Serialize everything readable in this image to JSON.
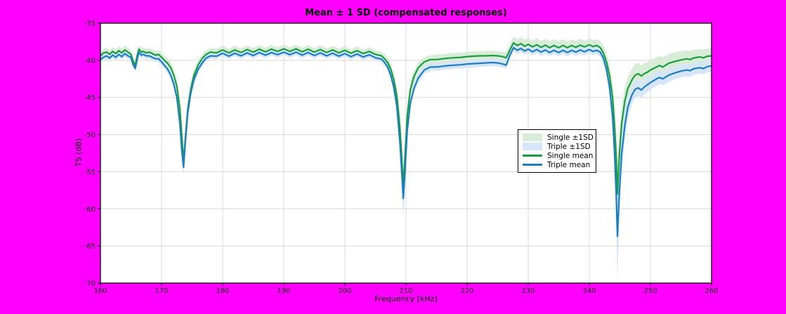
{
  "figure": {
    "background_color": "#ff00ff",
    "plot_background_color": "#ffffff",
    "grid_color": "#d8d8d8",
    "axis_color": "#1a1a1a"
  },
  "legend": {
    "items": [
      {
        "label": "Single ±1SD",
        "color": "#d8ecd8",
        "type": "patch"
      },
      {
        "label": "Triple ±1SD",
        "color": "#d6e6f8",
        "type": "patch"
      },
      {
        "label": "Single mean",
        "color": "#189e3e",
        "type": "line"
      },
      {
        "label": "Triple mean",
        "color": "#1b7ec2",
        "type": "line"
      }
    ]
  },
  "chart_data": {
    "type": "line",
    "title": "Mean ± 1 SD (compensated responses)",
    "xlabel": "Frequency [kHz]",
    "ylabel": "TS (dB)",
    "xlim": [
      160,
      260
    ],
    "ylim": [
      -70,
      -35
    ],
    "xticks": [
      160,
      170,
      180,
      190,
      200,
      210,
      220,
      230,
      240,
      250,
      260
    ],
    "yticks": [
      -35,
      -40,
      -45,
      -50,
      -55,
      -60,
      -65,
      -70
    ],
    "grid": true,
    "legend_position": "center-right",
    "x": [
      160,
      160.5,
      161,
      161.5,
      162,
      162.5,
      163,
      163.5,
      164,
      164.5,
      165,
      165.3,
      165.7,
      166,
      166.3,
      166.7,
      167,
      167.5,
      168,
      168.5,
      169,
      169.5,
      170,
      170.5,
      171,
      171.5,
      172,
      172.5,
      173,
      173.3,
      173.6,
      173.9,
      174.3,
      174.8,
      175.3,
      176,
      176.7,
      177.3,
      178,
      179,
      180,
      181,
      182,
      183,
      184,
      185,
      186,
      187,
      188,
      189,
      190,
      191,
      192,
      193,
      194,
      195,
      196,
      197,
      198,
      199,
      200,
      201,
      202,
      203,
      204,
      205,
      206,
      206.5,
      207,
      207.5,
      208,
      208.5,
      209,
      209.3,
      209.55,
      209.8,
      210.2,
      210.7,
      211.3,
      212,
      213,
      214,
      215,
      216,
      217,
      218,
      219,
      220,
      221,
      222,
      223,
      224,
      225,
      225.8,
      226.4,
      227,
      227.6,
      228.2,
      228.8,
      229.4,
      230,
      230.7,
      231.4,
      232.1,
      232.8,
      233.5,
      234.2,
      235,
      235.7,
      236.4,
      237.1,
      237.8,
      238.5,
      239.2,
      240,
      240.6,
      241.2,
      241.8,
      242.3,
      242.8,
      243.3,
      243.8,
      244.1,
      244.4,
      244.6,
      244.9,
      245.3,
      245.8,
      246.3,
      247,
      247.5,
      248,
      248.5,
      249,
      249.5,
      250,
      251,
      251.5,
      252,
      253,
      254,
      255,
      256,
      256.5,
      257,
      258,
      258.7,
      259.3,
      260
    ],
    "series": [
      {
        "name": "Single mean",
        "band_name": "Single ±1SD",
        "color": "#189e3e",
        "band_color": "#d8ecd8",
        "mean": [
          -39.4,
          -39.0,
          -38.9,
          -39.2,
          -38.8,
          -39.1,
          -38.7,
          -39.0,
          -38.6,
          -38.9,
          -39.2,
          -40.0,
          -40.7,
          -39.4,
          -38.5,
          -38.9,
          -38.8,
          -39.0,
          -38.9,
          -39.1,
          -39.3,
          -39.2,
          -39.6,
          -40.0,
          -40.4,
          -41.0,
          -42.0,
          -43.5,
          -46.5,
          -50.0,
          -53.7,
          -50.5,
          -46.5,
          -43.8,
          -42.0,
          -40.6,
          -39.7,
          -39.2,
          -38.9,
          -39.0,
          -38.6,
          -39.0,
          -38.6,
          -38.95,
          -38.55,
          -38.9,
          -38.5,
          -38.85,
          -38.5,
          -38.8,
          -38.45,
          -38.8,
          -38.45,
          -38.85,
          -38.5,
          -38.9,
          -38.55,
          -38.95,
          -38.6,
          -39.0,
          -38.65,
          -39.05,
          -38.7,
          -39.1,
          -38.8,
          -39.2,
          -39.4,
          -39.8,
          -40.3,
          -41.2,
          -42.6,
          -44.8,
          -49.0,
          -53.0,
          -57.0,
          -53.5,
          -47.5,
          -44.0,
          -42.2,
          -41.0,
          -40.2,
          -39.9,
          -39.9,
          -39.8,
          -39.7,
          -39.65,
          -39.6,
          -39.5,
          -39.45,
          -39.4,
          -39.4,
          -39.35,
          -39.4,
          -39.5,
          -39.65,
          -38.6,
          -37.65,
          -38.0,
          -37.75,
          -38.1,
          -37.85,
          -38.2,
          -37.9,
          -38.25,
          -37.95,
          -38.3,
          -38.0,
          -38.3,
          -38.0,
          -38.3,
          -38.0,
          -38.25,
          -37.95,
          -38.2,
          -37.9,
          -38.15,
          -38.0,
          -38.3,
          -39.0,
          -40.2,
          -42.0,
          -45.0,
          -48.5,
          -53.0,
          -58.0,
          -53.0,
          -48.5,
          -45.5,
          -43.8,
          -42.6,
          -42.0,
          -41.8,
          -42.1,
          -41.8,
          -41.6,
          -41.3,
          -40.9,
          -40.7,
          -40.9,
          -40.4,
          -40.15,
          -39.95,
          -39.8,
          -39.9,
          -39.7,
          -39.55,
          -39.65,
          -39.45,
          -39.4
        ],
        "sd": [
          0.55,
          0.55,
          0.55,
          0.55,
          0.55,
          0.55,
          0.55,
          0.55,
          0.55,
          0.55,
          0.55,
          0.55,
          0.55,
          0.55,
          0.55,
          0.55,
          0.55,
          0.55,
          0.55,
          0.55,
          0.55,
          0.55,
          0.6,
          0.6,
          0.65,
          0.7,
          0.8,
          0.9,
          1.1,
          1.2,
          1.3,
          1.2,
          1.0,
          0.8,
          0.7,
          0.6,
          0.55,
          0.55,
          0.55,
          0.55,
          0.55,
          0.55,
          0.55,
          0.55,
          0.55,
          0.55,
          0.55,
          0.55,
          0.55,
          0.55,
          0.55,
          0.55,
          0.55,
          0.55,
          0.55,
          0.55,
          0.55,
          0.55,
          0.55,
          0.55,
          0.55,
          0.55,
          0.55,
          0.55,
          0.55,
          0.55,
          0.55,
          0.6,
          0.7,
          0.8,
          0.9,
          1.1,
          1.6,
          2.0,
          2.4,
          2.0,
          1.4,
          1.0,
          0.8,
          0.7,
          0.65,
          0.6,
          0.65,
          0.65,
          0.65,
          0.65,
          0.65,
          0.65,
          0.65,
          0.65,
          0.65,
          0.65,
          0.65,
          0.65,
          0.65,
          0.7,
          0.85,
          0.85,
          0.85,
          0.85,
          0.85,
          0.85,
          0.85,
          0.85,
          0.85,
          0.85,
          0.85,
          0.85,
          0.85,
          0.85,
          0.85,
          0.85,
          0.85,
          0.85,
          0.85,
          0.85,
          0.85,
          0.9,
          1.0,
          1.2,
          1.5,
          2.0,
          2.6,
          3.2,
          4.0,
          3.2,
          2.4,
          1.9,
          1.6,
          1.5,
          1.5,
          1.45,
          1.45,
          1.4,
          1.4,
          1.35,
          1.3,
          1.3,
          1.3,
          1.25,
          1.2,
          1.2,
          1.15,
          1.15,
          1.1,
          1.1,
          1.1,
          1.05,
          1.05
        ]
      },
      {
        "name": "Triple mean",
        "band_name": "Triple ±1SD",
        "color": "#1b7ec2",
        "band_color": "#d6e6f8",
        "mean": [
          -39.9,
          -39.6,
          -39.4,
          -39.7,
          -39.3,
          -39.6,
          -39.2,
          -39.5,
          -39.1,
          -39.4,
          -39.6,
          -40.5,
          -41.1,
          -39.9,
          -38.9,
          -39.3,
          -39.2,
          -39.4,
          -39.4,
          -39.6,
          -39.8,
          -39.8,
          -40.2,
          -40.7,
          -41.2,
          -42.0,
          -43.2,
          -45.0,
          -48.5,
          -52.0,
          -54.4,
          -51.0,
          -47.0,
          -44.3,
          -42.6,
          -41.2,
          -40.3,
          -39.7,
          -39.4,
          -39.45,
          -39.05,
          -39.45,
          -39.05,
          -39.4,
          -39.0,
          -39.35,
          -38.95,
          -39.3,
          -38.95,
          -39.25,
          -38.9,
          -39.25,
          -38.9,
          -39.3,
          -38.95,
          -39.35,
          -39.0,
          -39.4,
          -39.05,
          -39.45,
          -39.1,
          -39.5,
          -39.15,
          -39.55,
          -39.25,
          -39.65,
          -39.85,
          -40.3,
          -40.9,
          -42.0,
          -43.6,
          -46.2,
          -51.0,
          -55.0,
          -58.6,
          -55.5,
          -49.5,
          -45.8,
          -43.8,
          -42.4,
          -41.3,
          -40.9,
          -40.9,
          -40.8,
          -40.7,
          -40.65,
          -40.6,
          -40.5,
          -40.45,
          -40.4,
          -40.35,
          -40.3,
          -40.35,
          -40.5,
          -40.65,
          -39.3,
          -38.3,
          -38.65,
          -38.4,
          -38.75,
          -38.5,
          -38.85,
          -38.55,
          -38.9,
          -38.6,
          -38.95,
          -38.65,
          -38.95,
          -38.65,
          -38.95,
          -38.65,
          -38.9,
          -38.6,
          -38.85,
          -38.55,
          -38.8,
          -38.65,
          -38.9,
          -39.7,
          -41.2,
          -43.5,
          -47.5,
          -52.0,
          -58.0,
          -63.7,
          -58.0,
          -52.5,
          -48.8,
          -46.3,
          -44.6,
          -43.9,
          -43.7,
          -44.0,
          -43.6,
          -43.3,
          -43.0,
          -42.5,
          -42.3,
          -42.5,
          -42.0,
          -41.7,
          -41.45,
          -41.3,
          -41.4,
          -41.15,
          -41.0,
          -41.1,
          -40.85,
          -40.75
        ],
        "sd": [
          0.4,
          0.4,
          0.4,
          0.4,
          0.4,
          0.4,
          0.4,
          0.4,
          0.4,
          0.4,
          0.4,
          0.4,
          0.4,
          0.4,
          0.4,
          0.4,
          0.4,
          0.4,
          0.4,
          0.4,
          0.4,
          0.4,
          0.45,
          0.45,
          0.5,
          0.55,
          0.6,
          0.7,
          0.85,
          0.95,
          1.05,
          0.95,
          0.8,
          0.65,
          0.55,
          0.5,
          0.45,
          0.4,
          0.4,
          0.4,
          0.4,
          0.4,
          0.4,
          0.4,
          0.4,
          0.4,
          0.4,
          0.4,
          0.4,
          0.4,
          0.4,
          0.4,
          0.4,
          0.4,
          0.4,
          0.4,
          0.4,
          0.4,
          0.4,
          0.4,
          0.4,
          0.4,
          0.4,
          0.4,
          0.4,
          0.4,
          0.4,
          0.45,
          0.5,
          0.6,
          0.7,
          0.9,
          1.4,
          1.9,
          2.6,
          2.0,
          1.3,
          0.9,
          0.7,
          0.6,
          0.5,
          0.5,
          0.5,
          0.5,
          0.5,
          0.5,
          0.5,
          0.5,
          0.5,
          0.5,
          0.5,
          0.5,
          0.5,
          0.5,
          0.5,
          0.5,
          0.5,
          0.5,
          0.5,
          0.5,
          0.5,
          0.5,
          0.5,
          0.5,
          0.5,
          0.5,
          0.5,
          0.5,
          0.5,
          0.5,
          0.5,
          0.5,
          0.5,
          0.5,
          0.5,
          0.5,
          0.5,
          0.6,
          0.7,
          0.9,
          1.2,
          1.8,
          2.6,
          4.0,
          5.8,
          4.0,
          2.8,
          2.0,
          1.5,
          1.2,
          1.1,
          1.05,
          1.05,
          1.0,
          1.0,
          0.95,
          0.95,
          0.9,
          0.9,
          0.9,
          0.85,
          0.85,
          0.85,
          0.8,
          0.8,
          0.8,
          0.8,
          0.8,
          0.8
        ]
      }
    ]
  }
}
